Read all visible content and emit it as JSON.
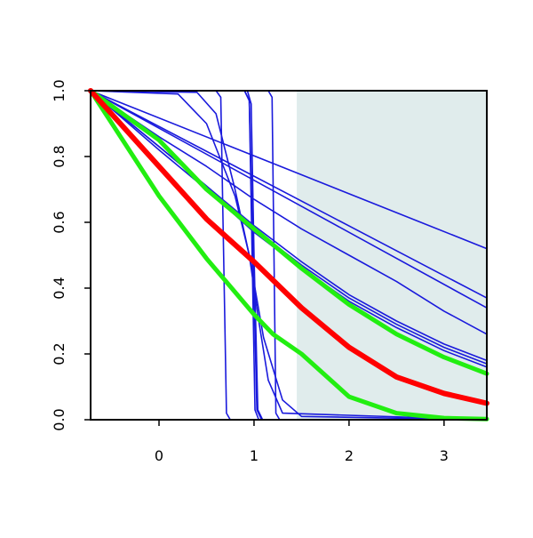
{
  "chart_data": {
    "type": "line",
    "xlim": [
      -0.72,
      3.45
    ],
    "ylim": [
      0,
      1
    ],
    "x_ticks": [
      "0",
      "1",
      "2",
      "3"
    ],
    "y_ticks": [
      "0.0",
      "0.2",
      "0.4",
      "0.6",
      "0.8",
      "1.0"
    ],
    "shaded_region": {
      "x_from": 1.45,
      "x_to": 3.45,
      "color": "#e0ecec"
    },
    "grid": false,
    "colors": {
      "thin_curves": "#1a1adc",
      "central_curve": "#ff0000",
      "band_curves": "#22ee11"
    },
    "series": [
      {
        "style": "thin",
        "x": [
          -0.72,
          3.45
        ],
        "y": [
          1.0,
          0.52
        ]
      },
      {
        "style": "thin",
        "x": [
          -0.72,
          3.45
        ],
        "y": [
          1.0,
          0.37
        ]
      },
      {
        "style": "thin",
        "x": [
          -0.72,
          3.45
        ],
        "y": [
          1.0,
          0.34
        ]
      },
      {
        "style": "thin",
        "x": [
          -0.72,
          0.0,
          0.5,
          1.0,
          1.5,
          2.0,
          2.5,
          3.0,
          3.45
        ],
        "y": [
          1.0,
          0.86,
          0.77,
          0.67,
          0.58,
          0.5,
          0.42,
          0.33,
          0.26
        ]
      },
      {
        "style": "thin",
        "x": [
          -0.72,
          0.0,
          0.5,
          1.0,
          1.5,
          2.0,
          2.5,
          3.0,
          3.45
        ],
        "y": [
          1.0,
          0.83,
          0.71,
          0.58,
          0.47,
          0.37,
          0.29,
          0.22,
          0.17
        ]
      },
      {
        "style": "thin",
        "x": [
          -0.72,
          0.0,
          0.5,
          1.0,
          1.5,
          2.0,
          2.5,
          3.0,
          3.45
        ],
        "y": [
          1.0,
          0.82,
          0.7,
          0.57,
          0.46,
          0.36,
          0.28,
          0.21,
          0.16
        ]
      },
      {
        "style": "thin",
        "x": [
          -0.72,
          0.0,
          0.5,
          1.0,
          1.5,
          2.0,
          2.5,
          3.0,
          3.45
        ],
        "y": [
          1.0,
          0.83,
          0.71,
          0.59,
          0.48,
          0.38,
          0.3,
          0.23,
          0.18
        ]
      },
      {
        "style": "thin",
        "x": [
          -0.72,
          0.6,
          0.65,
          0.68,
          0.71,
          0.75,
          3.45
        ],
        "y": [
          1.0,
          1.0,
          0.98,
          0.5,
          0.02,
          0.0,
          0.0
        ]
      },
      {
        "style": "thin",
        "x": [
          -0.72,
          1.15,
          1.19,
          1.21,
          1.23,
          1.27,
          3.45
        ],
        "y": [
          1.0,
          1.0,
          0.98,
          0.5,
          0.02,
          0.0,
          0.0
        ]
      },
      {
        "style": "thin",
        "x": [
          -0.72,
          0.9,
          0.95,
          0.99,
          1.03,
          1.08,
          3.45
        ],
        "y": [
          1.0,
          1.0,
          0.97,
          0.5,
          0.03,
          0.0,
          0.0
        ]
      },
      {
        "style": "thin",
        "x": [
          -0.72,
          0.9,
          0.95,
          0.98,
          1.01,
          1.05,
          3.45
        ],
        "y": [
          1.0,
          1.0,
          0.97,
          0.5,
          0.03,
          0.0,
          0.0
        ]
      },
      {
        "style": "thin",
        "x": [
          -0.72,
          0.93,
          0.97,
          1.0,
          1.04,
          1.09,
          3.45
        ],
        "y": [
          1.0,
          1.0,
          0.96,
          0.5,
          0.03,
          0.0,
          0.0
        ]
      },
      {
        "style": "thin",
        "x": [
          -0.72,
          0.2,
          0.5,
          0.8,
          0.95,
          1.1,
          1.3,
          1.5,
          3.45
        ],
        "y": [
          1.0,
          0.99,
          0.9,
          0.68,
          0.5,
          0.25,
          0.06,
          0.01,
          0.0
        ]
      },
      {
        "style": "thin",
        "x": [
          -0.72,
          0.4,
          0.6,
          0.8,
          0.95,
          1.05,
          1.15,
          1.3,
          3.45
        ],
        "y": [
          1.0,
          0.995,
          0.93,
          0.7,
          0.5,
          0.3,
          0.12,
          0.02,
          0.0
        ]
      },
      {
        "style": "green",
        "x": [
          -0.72,
          0.0,
          0.5,
          1.0,
          1.5,
          2.0,
          2.5,
          3.0,
          3.45
        ],
        "y": [
          1.0,
          0.85,
          0.7,
          0.58,
          0.46,
          0.35,
          0.26,
          0.19,
          0.14
        ]
      },
      {
        "style": "red",
        "x": [
          -0.72,
          0.0,
          0.5,
          1.0,
          1.5,
          2.0,
          2.5,
          3.0,
          3.45
        ],
        "y": [
          1.0,
          0.77,
          0.61,
          0.48,
          0.34,
          0.22,
          0.13,
          0.08,
          0.05
        ]
      },
      {
        "style": "green",
        "x": [
          -0.72,
          0.0,
          0.5,
          1.0,
          1.2,
          1.5,
          2.0,
          2.5,
          3.0,
          3.45
        ],
        "y": [
          1.0,
          0.68,
          0.49,
          0.32,
          0.26,
          0.2,
          0.07,
          0.02,
          0.005,
          0.002
        ]
      }
    ]
  }
}
